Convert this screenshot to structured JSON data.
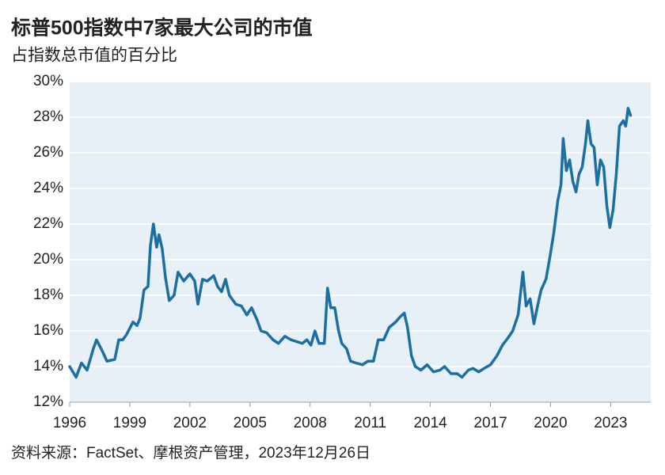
{
  "chart_data": {
    "type": "line",
    "title": "标普500指数中7家最大公司的市值",
    "subtitle": "占指数总市值的百分比",
    "source": "资料来源：FactSet、摩根资产管理，2023年12月26日",
    "xlim": [
      1996,
      2025
    ],
    "xticks": [
      1996,
      1999,
      2002,
      2005,
      2008,
      2011,
      2014,
      2017,
      2020,
      2023
    ],
    "ylim": [
      12,
      30
    ],
    "yticks": [
      {
        "value": 12,
        "label": "12%"
      },
      {
        "value": 14,
        "label": "14%"
      },
      {
        "value": 16,
        "label": "16%"
      },
      {
        "value": 18,
        "label": "18%"
      },
      {
        "value": 20,
        "label": "20%"
      },
      {
        "value": 22,
        "label": "22%"
      },
      {
        "value": 24,
        "label": "24%"
      },
      {
        "value": 26,
        "label": "26%"
      },
      {
        "value": 28,
        "label": "28%"
      },
      {
        "value": 30,
        "label": "30%"
      }
    ],
    "grid": true,
    "background": "#e6f0f6",
    "color": "#1b6fa3",
    "x": [
      1996.0,
      1996.32,
      1996.59,
      1996.87,
      1997.18,
      1997.34,
      1997.66,
      1997.86,
      1998.25,
      1998.45,
      1998.65,
      1998.84,
      1999.16,
      1999.36,
      1999.51,
      1999.71,
      1999.91,
      2000.03,
      2000.18,
      2000.34,
      2000.46,
      2000.62,
      2000.78,
      2000.97,
      2001.21,
      2001.41,
      2001.69,
      2002.0,
      2002.24,
      2002.4,
      2002.63,
      2002.87,
      2003.19,
      2003.38,
      2003.58,
      2003.78,
      2003.97,
      2004.29,
      2004.57,
      2004.84,
      2005.08,
      2005.36,
      2005.55,
      2005.83,
      2006.15,
      2006.42,
      2006.74,
      2007.05,
      2007.33,
      2007.61,
      2007.84,
      2008.04,
      2008.24,
      2008.44,
      2008.71,
      2008.87,
      2009.03,
      2009.23,
      2009.42,
      2009.58,
      2009.82,
      2010.02,
      2010.29,
      2010.61,
      2010.88,
      2011.16,
      2011.4,
      2011.67,
      2011.95,
      2012.27,
      2012.5,
      2012.7,
      2012.86,
      2013.06,
      2013.25,
      2013.53,
      2013.84,
      2014.16,
      2014.48,
      2014.71,
      2015.03,
      2015.34,
      2015.58,
      2015.9,
      2016.13,
      2016.41,
      2016.69,
      2017.0,
      2017.32,
      2017.6,
      2017.87,
      2018.11,
      2018.38,
      2018.62,
      2018.78,
      2018.98,
      2019.17,
      2019.37,
      2019.53,
      2019.77,
      2019.96,
      2020.16,
      2020.36,
      2020.52,
      2020.63,
      2020.79,
      2020.95,
      2021.11,
      2021.27,
      2021.42,
      2021.58,
      2021.74,
      2021.86,
      2022.02,
      2022.17,
      2022.33,
      2022.49,
      2022.65,
      2022.81,
      2022.96,
      2023.12,
      2023.28,
      2023.44,
      2023.63,
      2023.75,
      2023.87,
      2023.99
    ],
    "values": [
      14.0,
      13.4,
      14.2,
      13.8,
      15.0,
      15.5,
      14.8,
      14.3,
      14.4,
      15.5,
      15.5,
      15.8,
      16.5,
      16.3,
      16.7,
      18.3,
      18.5,
      20.8,
      22.0,
      20.7,
      21.4,
      20.6,
      19.0,
      17.7,
      18.0,
      19.3,
      18.8,
      19.2,
      18.8,
      17.5,
      18.9,
      18.8,
      19.1,
      18.5,
      18.2,
      18.9,
      18.0,
      17.5,
      17.4,
      16.9,
      17.3,
      16.6,
      16.0,
      15.9,
      15.5,
      15.3,
      15.7,
      15.5,
      15.4,
      15.3,
      15.5,
      15.2,
      16.0,
      15.3,
      15.3,
      18.4,
      17.3,
      17.3,
      16.0,
      15.3,
      15.0,
      14.3,
      14.2,
      14.1,
      14.3,
      14.3,
      15.5,
      15.5,
      16.2,
      16.5,
      16.8,
      17.0,
      16.2,
      14.6,
      14.0,
      13.8,
      14.1,
      13.7,
      13.8,
      14.0,
      13.6,
      13.6,
      13.4,
      13.8,
      13.9,
      13.7,
      13.9,
      14.1,
      14.6,
      15.2,
      15.6,
      16.0,
      16.9,
      19.3,
      17.4,
      17.8,
      16.4,
      17.5,
      18.3,
      18.9,
      20.1,
      21.5,
      23.3,
      24.2,
      26.8,
      25.0,
      25.6,
      24.4,
      23.8,
      24.8,
      25.2,
      26.5,
      27.8,
      26.5,
      26.3,
      24.2,
      25.6,
      25.2,
      23.0,
      21.8,
      22.8,
      24.8,
      27.5,
      27.8,
      27.5,
      28.5,
      28.1
    ]
  }
}
